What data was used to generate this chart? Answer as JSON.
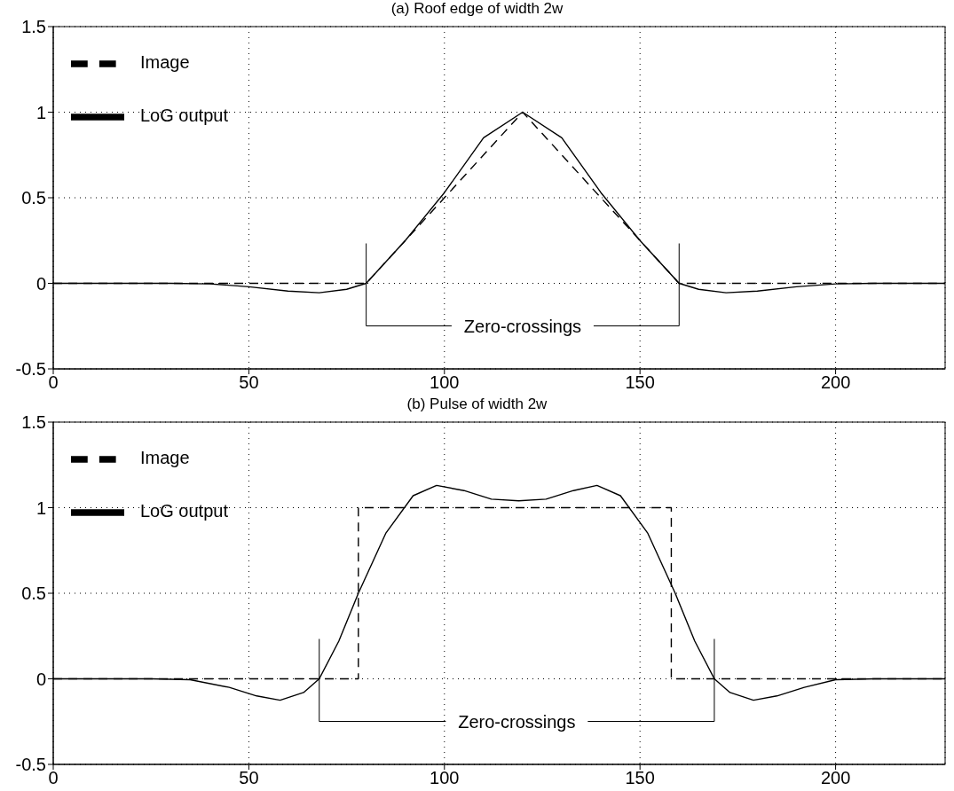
{
  "chart_data": [
    {
      "type": "line",
      "title": "(a) Roof edge of width 2w",
      "xlim": [
        0,
        228
      ],
      "xticks": [
        0,
        50,
        100,
        150,
        200
      ],
      "ylim": [
        -0.5,
        1.5
      ],
      "yticks": [
        -0.5,
        0,
        0.5,
        1,
        1.5
      ],
      "grid": true,
      "legend": "top left",
      "marker": "none",
      "annotations": [
        "Zero-crossings"
      ],
      "series": [
        {
          "name": "Image",
          "color": "#000000",
          "line_style": "dashed",
          "x": [
            0,
            80,
            120,
            160,
            228
          ],
          "values": [
            0,
            0,
            1,
            0,
            0
          ]
        },
        {
          "name": "LoG output",
          "color": "#000000",
          "line_style": "solid",
          "x": [
            0,
            30,
            40,
            50,
            60,
            68,
            75,
            80,
            90,
            100,
            110,
            120,
            130,
            140,
            150,
            160,
            165,
            172,
            180,
            190,
            200,
            210,
            228
          ],
          "values": [
            0,
            0,
            -0.003,
            -0.02,
            -0.045,
            -0.055,
            -0.035,
            0,
            0.25,
            0.53,
            0.85,
            1.0,
            0.85,
            0.53,
            0.25,
            0,
            -0.035,
            -0.055,
            -0.045,
            -0.02,
            -0.003,
            0,
            0
          ]
        }
      ]
    },
    {
      "type": "line",
      "title": "(b) Pulse of width 2w",
      "xlim": [
        0,
        228
      ],
      "xticks": [
        0,
        50,
        100,
        150,
        200
      ],
      "ylim": [
        -0.5,
        1.5
      ],
      "yticks": [
        -0.5,
        0,
        0.5,
        1,
        1.5
      ],
      "grid": true,
      "legend": "top left",
      "marker": "none",
      "annotations": [
        "Zero-crossings"
      ],
      "series": [
        {
          "name": "Image",
          "color": "#000000",
          "line_style": "dashed",
          "x": [
            0,
            78,
            78,
            158,
            158,
            228
          ],
          "values": [
            0,
            0,
            1,
            1,
            0,
            0
          ]
        },
        {
          "name": "LoG output",
          "color": "#000000",
          "line_style": "solid",
          "x": [
            0,
            25,
            35,
            45,
            52,
            58,
            64,
            68,
            73,
            78,
            85,
            92,
            98,
            105,
            112,
            119,
            126,
            133,
            139,
            145,
            152,
            159,
            164,
            169,
            173,
            179,
            185,
            192,
            200,
            210,
            228
          ],
          "values": [
            0,
            0,
            -0.005,
            -0.05,
            -0.1,
            -0.125,
            -0.08,
            0,
            0.22,
            0.5,
            0.85,
            1.07,
            1.13,
            1.1,
            1.05,
            1.04,
            1.05,
            1.1,
            1.13,
            1.07,
            0.85,
            0.5,
            0.22,
            0,
            -0.08,
            -0.125,
            -0.1,
            -0.05,
            -0.005,
            0,
            0
          ]
        }
      ]
    }
  ]
}
